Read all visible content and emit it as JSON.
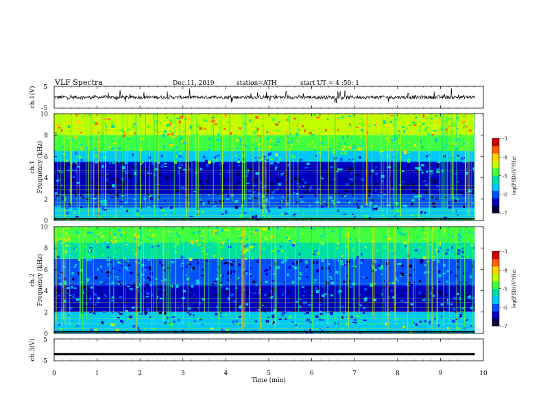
{
  "header": {
    "title": "VLF Spectra",
    "date": "Dec.11, 2019",
    "station": "station=ATH",
    "start": "start UT =  4 :50: 1"
  },
  "colors": {
    "colormap": [
      "#000040",
      "#0000c0",
      "#0050ff",
      "#00c8ff",
      "#00e0a0",
      "#40ff40",
      "#c0ff00",
      "#ffd000",
      "#ff6000",
      "#d00000",
      "#ffffff"
    ],
    "trace": "#000000",
    "axis": "#000000"
  },
  "chart_data": [
    {
      "type": "line",
      "panel": "ch1-waveform",
      "ylabel": "ch.1(V)",
      "yticks": [
        "5",
        "-5"
      ],
      "ylim": [
        -5,
        5
      ],
      "xlim": [
        0,
        10
      ],
      "description_values": "noisy waveform around 0 V with spikes, ends near 9.8 min"
    },
    {
      "type": "heatmap",
      "panel": "ch1-spectrogram",
      "ylabel": "ch.1\nFrequency (kHz)",
      "ylabel_lines": [
        "ch.1",
        "Frequency (kHz)"
      ],
      "yticks": [
        "0",
        "2",
        "4",
        "6",
        "8",
        "10"
      ],
      "ylim": [
        0,
        10
      ],
      "xlim": [
        0,
        10
      ],
      "data_end_min": 9.8,
      "colorbar": {
        "label": "log(PSD)(V²/Hz)",
        "ticks": [
          "-3",
          "-4",
          "-5",
          "-6",
          "-7"
        ],
        "range": [
          -7,
          -3
        ]
      },
      "bands": [
        {
          "from_khz": 0,
          "to_khz": 0.3,
          "level": -5.2
        },
        {
          "from_khz": 0.3,
          "to_khz": 1.2,
          "level": -5.6
        },
        {
          "from_khz": 1.2,
          "to_khz": 2.5,
          "level": -6.0
        },
        {
          "from_khz": 2.5,
          "to_khz": 4.5,
          "level": -6.6
        },
        {
          "from_khz": 4.5,
          "to_khz": 5.5,
          "level": -6.2
        },
        {
          "from_khz": 5.5,
          "to_khz": 6.5,
          "level": -5.4
        },
        {
          "from_khz": 6.5,
          "to_khz": 8.0,
          "level": -4.9
        },
        {
          "from_khz": 8.0,
          "to_khz": 10.0,
          "level": -4.4
        }
      ]
    },
    {
      "type": "heatmap",
      "panel": "ch2-spectrogram",
      "ylabel": "ch.2\nFrequency (kHz)",
      "ylabel_lines": [
        "ch.2",
        "Frequency (kHz)"
      ],
      "yticks": [
        "0",
        "2",
        "4",
        "6",
        "8",
        "10"
      ],
      "ylim": [
        0,
        10
      ],
      "xlim": [
        0,
        10
      ],
      "data_end_min": 9.8,
      "colorbar": {
        "label": "log(PSD)(V²/Hz)",
        "ticks": [
          "-3",
          "-4",
          "-5",
          "-6",
          "-7"
        ],
        "range": [
          -7,
          -3
        ]
      },
      "bands": [
        {
          "from_khz": 0,
          "to_khz": 1.0,
          "level": -5.4
        },
        {
          "from_khz": 1.0,
          "to_khz": 2.0,
          "level": -5.8
        },
        {
          "from_khz": 2.0,
          "to_khz": 4.5,
          "level": -6.4
        },
        {
          "from_khz": 4.5,
          "to_khz": 7.0,
          "level": -6.0
        },
        {
          "from_khz": 7.0,
          "to_khz": 8.5,
          "level": -5.3
        },
        {
          "from_khz": 8.5,
          "to_khz": 10.0,
          "level": -4.9
        }
      ]
    },
    {
      "type": "line",
      "panel": "ch3-waveform",
      "ylabel": "ch.3(V)",
      "yticks": [
        "5",
        "-5"
      ],
      "ylim": [
        -5,
        5
      ],
      "xlim": [
        0,
        10
      ],
      "xlabel": "Time (min)",
      "xticks": [
        "0",
        "1",
        "2",
        "3",
        "4",
        "5",
        "6",
        "7",
        "8",
        "9",
        "10"
      ],
      "level_v": -2.0
    }
  ]
}
